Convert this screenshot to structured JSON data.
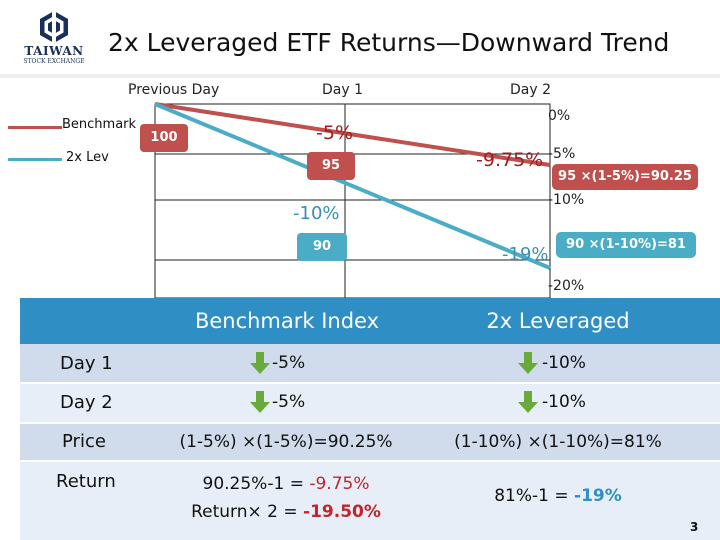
{
  "header": {
    "logo_name": "TAIWAN",
    "logo_sub": "STOCK EXCHANGE",
    "title": "2x Leveraged ETF Returns—Downward Trend"
  },
  "chart": {
    "day_labels": [
      "Previous Day",
      "Day 1",
      "Day 2"
    ],
    "legend": [
      {
        "label": "Benchmark",
        "color": "#c0504d"
      },
      {
        "label": "2x Lev",
        "color": "#4bacc6"
      }
    ],
    "start_value": "100",
    "benchmark_day1_pct": "-5%",
    "benchmark_day1_value": "95",
    "lev_day1_pct": "-10%",
    "lev_day1_value": "90",
    "benchmark_day2_cum": "-9.75%",
    "lev_day2_cum": "-19%",
    "day2_axis_ticks": [
      "0%",
      "-5%",
      "-10%",
      "-20%"
    ],
    "benchmark_day2_calc": "95 ×(1-5%)=90.25",
    "lev_day2_calc": "90 ×(1-10%)=81"
  },
  "chart_data": {
    "type": "line",
    "categories": [
      "Previous Day",
      "Day 1",
      "Day 2"
    ],
    "series": [
      {
        "name": "Benchmark",
        "values": [
          100,
          95,
          90.25
        ]
      },
      {
        "name": "2x Lev",
        "values": [
          100,
          90,
          81
        ]
      }
    ]
  },
  "table": {
    "headers": [
      "Benchmark Index",
      "2x Leveraged"
    ],
    "rows": [
      {
        "label": "Day 1",
        "benchmark": "-5%",
        "leveraged": "-10%"
      },
      {
        "label": "Day 2",
        "benchmark": "-5%",
        "leveraged": "-10%"
      },
      {
        "label": "Price",
        "benchmark": "(1-5%) ×(1-5%)=90.25%",
        "leveraged": "(1-10%) ×(1-10%)=81%"
      },
      {
        "label": "Return",
        "benchmark_line1_pre": "90.25%-1 = ",
        "benchmark_line1_val": "-9.75%",
        "benchmark_line2_pre": "Return× 2 = ",
        "benchmark_line2_val": "-19.50%",
        "leveraged_pre": "81%-1 = ",
        "leveraged_val": "-19%"
      }
    ],
    "colors": {
      "header": "#2f8fc4",
      "row_light": "#e8eef7",
      "row_dark": "#d0dbec",
      "arrow": "#6aaa3a"
    }
  },
  "page_number": "3"
}
